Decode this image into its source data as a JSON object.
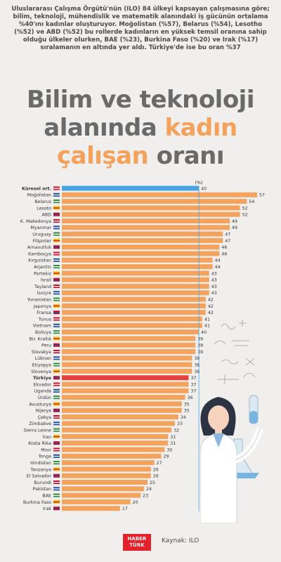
{
  "intro": "Uluslararası Çalışma Örgütü'nün (ILO) 84 ülkeyi kapsayan çalışmasına göre; bilim, teknoloji, mühendislik ve matematik alanındaki iş gücünün ortalama %40'ını kadınlar oluşturuyor. Moğolistan (%57), Belarus (%54), Lesotho (%52) ve ABD (%52) bu rollerde kadınların en yüksek temsil oranına sahip olduğu ülkeler olurken, BAE (%23), Burkina Faso (%20) ve Irak (%17) sıralamanın en altında yer aldı. Türkiye'de ise bu oran %37",
  "title": {
    "line1": "Bilim ve teknoloji",
    "line2_a": "alanında ",
    "line2_b": "kadın",
    "line3_a": "çalışan",
    "line3_b": " oranı"
  },
  "footer": {
    "logo_line1": "HABER",
    "logo_line2": "TÜRK",
    "source": "Kaynak: ILO"
  },
  "colors": {
    "bar": "#f3a35d",
    "average_bar": "#4aa4e2",
    "turkey_bar": "#e8413c",
    "reference_line": "#4aa4e2"
  },
  "icons": [
    "flag-icon",
    "scientist-illustration",
    "formula-doodle"
  ],
  "chart_data": {
    "type": "bar",
    "orientation": "horizontal",
    "unit_label": "(%)",
    "xlim": [
      0,
      57
    ],
    "reference_value": 40,
    "categories": [
      "Küresel ort.",
      "Moğolistan",
      "Belarus",
      "Lesoto",
      "ABD",
      "K. Makedonya",
      "Myanmar",
      "Uruguay",
      "Filipinler",
      "Arnavutluk",
      "Kamboçya",
      "Kırgızistan",
      "Arjantin",
      "Portekiz",
      "İsrail",
      "Tayland",
      "İsviçre",
      "Yunanistan",
      "Japonya",
      "Fransa",
      "Tunus",
      "Vietnam",
      "Bolivya",
      "Bir. Krallık",
      "Peru",
      "Slovakya",
      "Lübnan",
      "Etiyopya",
      "Slovenya",
      "Türkiye",
      "Ekvador",
      "Uganda",
      "Ürdün",
      "Avusturya",
      "Nijerya",
      "Çekya",
      "Zimbabve",
      "Sierra Leone",
      "İran",
      "Kosta Rika",
      "Mısır",
      "Tonga",
      "Hindistan",
      "Tanzanya",
      "El Salvador",
      "Burundi",
      "Pakistan",
      "BAE",
      "Burkina Faso",
      "Irak"
    ],
    "values": [
      40,
      57,
      54,
      52,
      52,
      49,
      49,
      47,
      47,
      46,
      46,
      44,
      44,
      43,
      43,
      43,
      43,
      42,
      42,
      42,
      41,
      41,
      40,
      39,
      39,
      39,
      38,
      38,
      38,
      37,
      37,
      37,
      36,
      35,
      35,
      34,
      33,
      32,
      31,
      31,
      30,
      29,
      27,
      26,
      26,
      25,
      24,
      23,
      20,
      17
    ],
    "highlight": {
      "Küresel ort.": "average",
      "Türkiye": "turkey"
    }
  }
}
